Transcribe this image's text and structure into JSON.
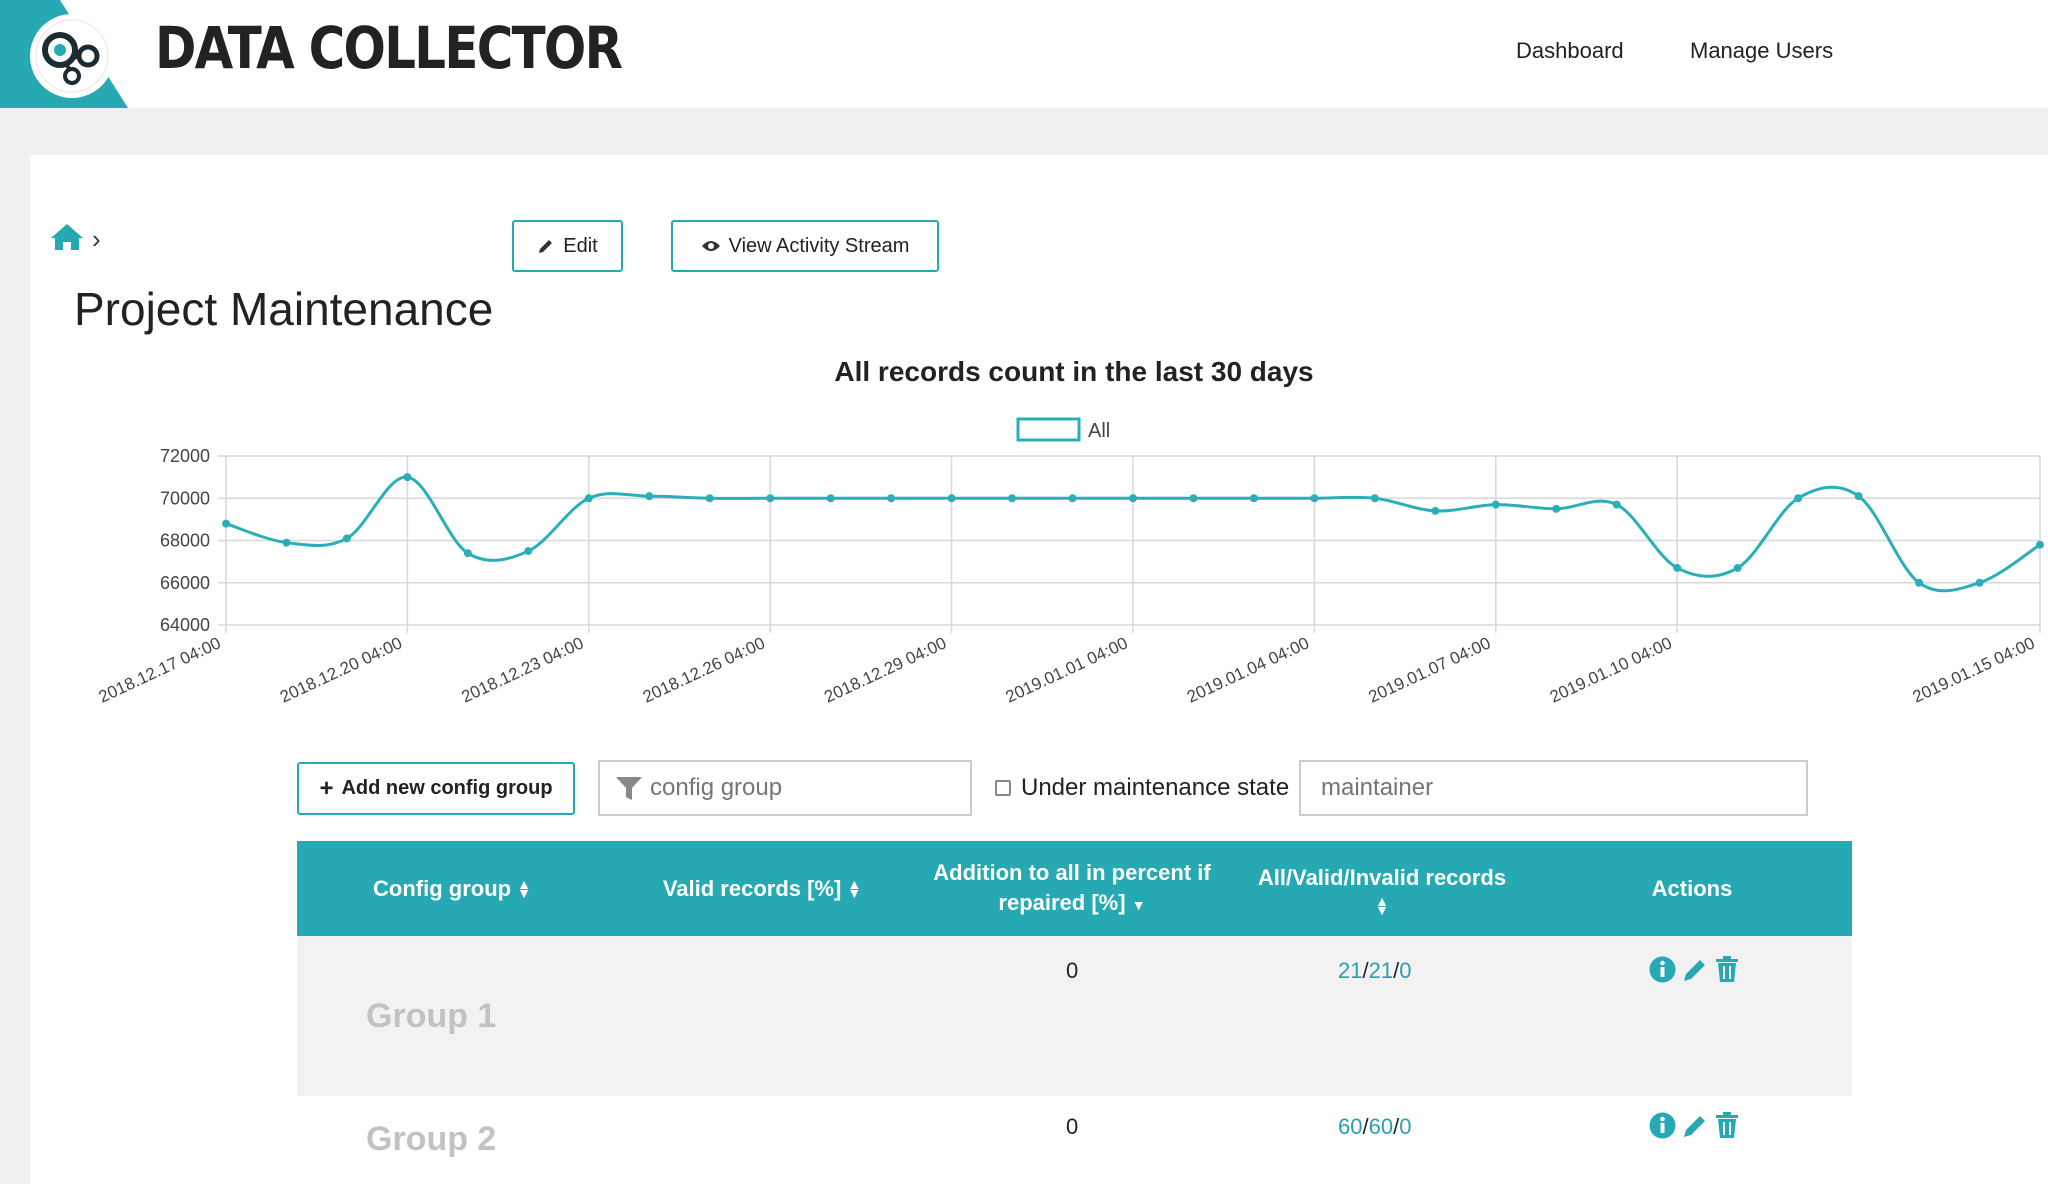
{
  "header": {
    "brand": "DATA COLLECTOR",
    "nav": [
      "Dashboard",
      "Manage Users"
    ]
  },
  "toolbar": {
    "edit_label": "Edit",
    "activity_label": "View Activity Stream"
  },
  "page_title": "Project Maintenance",
  "chart_data": {
    "type": "line",
    "title": "All records count in the last 30 days",
    "legend": "All",
    "legend_position": "top-center",
    "color": "#2aafb8",
    "ylim": [
      64000,
      72000
    ],
    "yticks": [
      "72000",
      "70000",
      "68000",
      "66000",
      "64000"
    ],
    "xtick_labels": [
      "2018.12.17 04:00",
      "2018.12.20 04:00",
      "2018.12.23 04:00",
      "2018.12.26 04:00",
      "2018.12.29 04:00",
      "2019.01.01 04:00",
      "2019.01.04 04:00",
      "2019.01.07 04:00",
      "2019.01.10 04:00",
      "2019.01.15 04:00"
    ],
    "grid": true,
    "series": [
      {
        "values": [
          68800,
          67900,
          68100,
          71000,
          67400,
          67500,
          70000,
          70100,
          70000,
          70000,
          70000,
          70000,
          70000,
          70000,
          70000,
          70000,
          70000,
          70000,
          70000,
          70000,
          69400,
          69700,
          69500,
          69700,
          66700,
          66700,
          70000,
          70100,
          66000,
          66000,
          67800
        ]
      }
    ]
  },
  "filters": {
    "add_label": "Add new config group",
    "config_placeholder": "config group",
    "maintenance_label": "Under maintenance state",
    "maintainer_placeholder": "maintainer"
  },
  "table": {
    "headers": [
      {
        "label": "Config group",
        "sort": "both"
      },
      {
        "label": "Valid records [%]",
        "sort": "both"
      },
      {
        "label": "Addition to all in percent if repaired [%]",
        "sort": "desc"
      },
      {
        "label": "All/Valid/Invalid records",
        "sort": "both"
      },
      {
        "label": "Actions",
        "sort": "none"
      }
    ],
    "rows": [
      {
        "name": "Group 1",
        "valid": "",
        "addition": "0",
        "all": "21",
        "valid_count": "21",
        "invalid": "0"
      },
      {
        "name": "Group 2",
        "valid": "",
        "addition": "0",
        "all": "60",
        "valid_count": "60",
        "invalid": "0"
      }
    ]
  },
  "icons": {
    "info": "info-icon",
    "edit": "pencil-icon",
    "delete": "trash-icon"
  }
}
